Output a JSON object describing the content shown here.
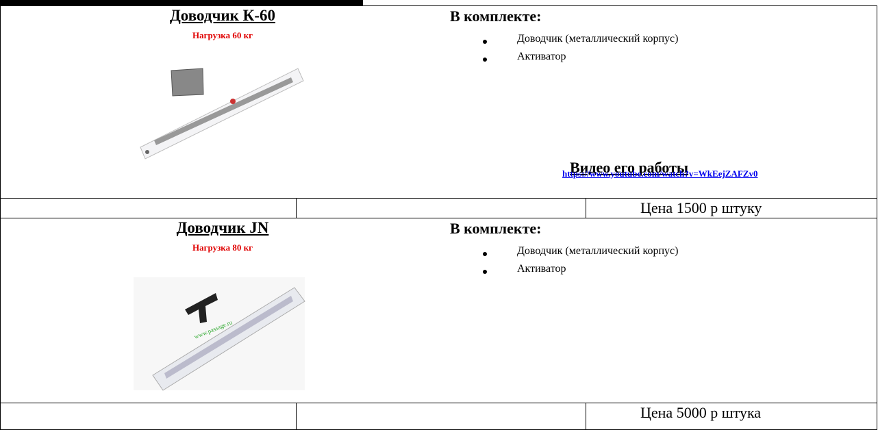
{
  "products": [
    {
      "title": "Доводчик К-60",
      "load": "Нагрузка 60 кг",
      "kit_heading": "В комплекте:",
      "kit_items": [
        "Доводчик (металлический корпус)",
        "Активатор"
      ],
      "video_heading": "Видео его работы",
      "video_link": "https://www.youtube.com/watch?v=WkEejZAFZv0",
      "price": "Цена 1500 р штуку"
    },
    {
      "title": "Доводчик JN",
      "load": "Нагрузка 80 кг",
      "kit_heading": "В комплекте:",
      "kit_items": [
        "Доводчик (металлический корпус)",
        "Активатор"
      ],
      "price": "Цена 5000 р штука"
    }
  ]
}
